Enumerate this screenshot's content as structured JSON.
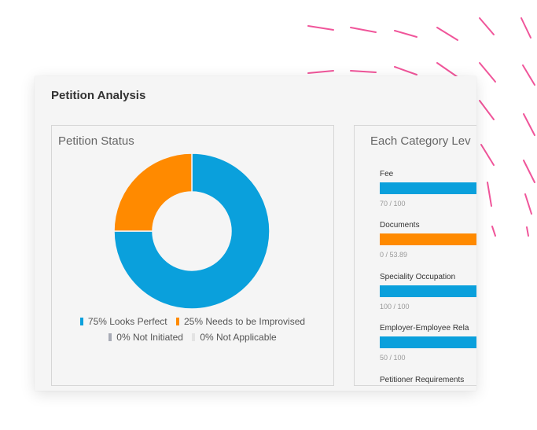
{
  "card": {
    "title": "Petition Analysis"
  },
  "status_panel": {
    "title": "Petition Status",
    "legend": [
      {
        "label": "75% Looks Perfect",
        "color": "#0aa0dc"
      },
      {
        "label": "25% Needs to be Improvised",
        "color": "#ff8a00"
      },
      {
        "label": "0% Not Initiated",
        "color": "#a8abb6"
      },
      {
        "label": "0% Not Applicable",
        "color": "#e3e3e3"
      }
    ]
  },
  "chart_data": {
    "type": "pie",
    "style": "donut",
    "categories": [
      "Looks Perfect",
      "Needs to be Improvised",
      "Not Initiated",
      "Not Applicable"
    ],
    "values": [
      75,
      25,
      0,
      0
    ],
    "colors": [
      "#0aa0dc",
      "#ff8a00",
      "#a8abb6",
      "#e3e3e3"
    ],
    "title": "Petition Status"
  },
  "category_panel": {
    "title": "Each Category Lev",
    "items": [
      {
        "label": "Fee",
        "score": "70 / 100",
        "color": "#0aa0dc"
      },
      {
        "label": "Documents",
        "score": "0 / 53.89",
        "color": "#ff8a00"
      },
      {
        "label": "Speciality Occupation",
        "score": "100 / 100",
        "color": "#0aa0dc"
      },
      {
        "label": "Employer-Employee Rela",
        "score": "50 / 100",
        "color": "#0aa0dc"
      },
      {
        "label": "Petitioner Requirements",
        "score": "",
        "color": "#0aa0dc"
      }
    ]
  },
  "decoration": {
    "dash_color": "#f0559a"
  }
}
